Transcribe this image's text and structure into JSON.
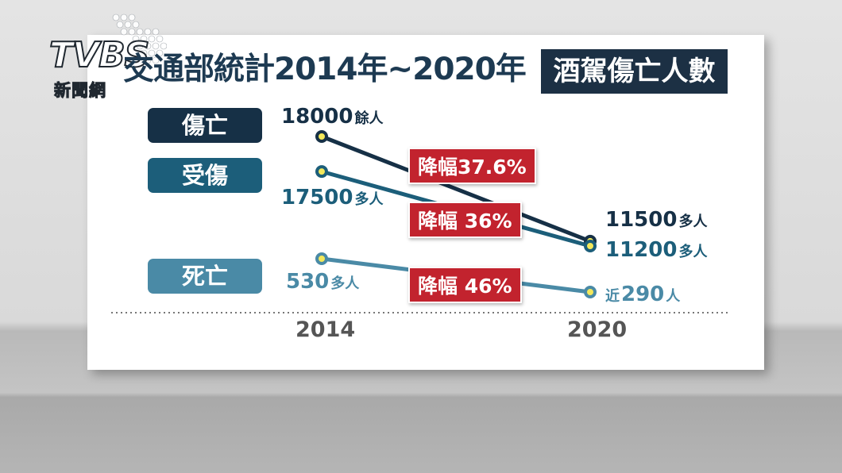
{
  "logo": {
    "brand": "TVBS",
    "sub": "新聞網"
  },
  "header": {
    "title": "交通部統計2014年~2020年",
    "highlight": "酒駕傷亡人數"
  },
  "colors": {
    "casualties": "#163046",
    "injured": "#1c5e7a",
    "deaths": "#4a8aa6",
    "drop_badge": "#c2232e"
  },
  "chart_data": {
    "type": "line",
    "title": "交通部統計2014年~2020年 酒駕傷亡人數",
    "categories": [
      "2014",
      "2020"
    ],
    "series": [
      {
        "name": "傷亡",
        "values": [
          18000,
          11500
        ],
        "labels": [
          {
            "num": "18000",
            "suffix": "餘人"
          },
          {
            "num": "11500",
            "suffix": "多人"
          }
        ],
        "change": "降幅37.6%"
      },
      {
        "name": "受傷",
        "values": [
          17500,
          11200
        ],
        "labels": [
          {
            "num": "17500",
            "suffix": "多人"
          },
          {
            "num": "11200",
            "suffix": "多人"
          }
        ],
        "change": "降幅 36%"
      },
      {
        "name": "死亡",
        "values": [
          530,
          290
        ],
        "labels": [
          {
            "num": "530",
            "suffix": "多人"
          },
          {
            "prefix": "近",
            "num": "290",
            "suffix": "人"
          }
        ],
        "change": "降幅 46%"
      }
    ]
  }
}
